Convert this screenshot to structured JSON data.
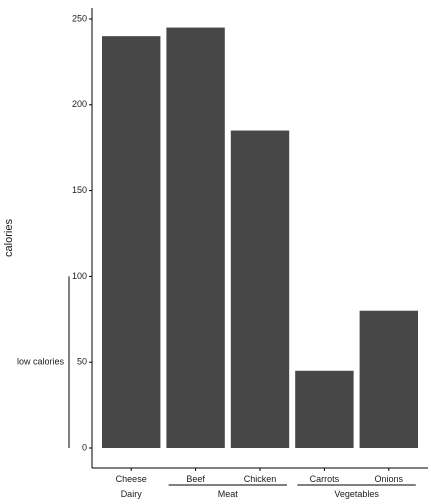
{
  "chart_data": {
    "type": "bar",
    "categories": [
      "Cheese",
      "Beef",
      "Chicken",
      "Carrots",
      "Onions"
    ],
    "values": [
      240,
      245,
      185,
      45,
      80
    ],
    "ylabel": "calories",
    "xlabel": "",
    "ylim": [
      0,
      255
    ],
    "yticks": [
      0,
      50,
      100,
      150,
      200,
      250
    ],
    "bar_color": "#474747",
    "groups": [
      {
        "label": "Dairy",
        "categories": [
          "Cheese"
        ]
      },
      {
        "label": "Meat",
        "categories": [
          "Beef",
          "Chicken"
        ]
      },
      {
        "label": "Vegetables",
        "categories": [
          "Carrots",
          "Onions"
        ]
      }
    ],
    "annotation": {
      "label": "low calories",
      "range": [
        0,
        100
      ]
    },
    "grid": false,
    "legend": "none"
  }
}
